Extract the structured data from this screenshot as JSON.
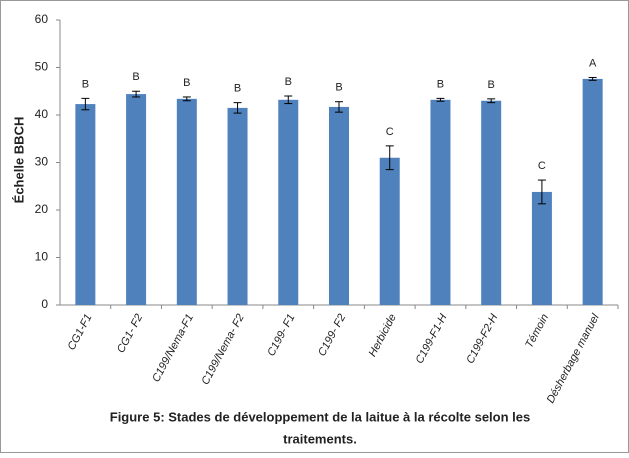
{
  "chart_data": {
    "type": "bar",
    "title": [
      "Figure 5: Stades de développement de la laitue à la récolte selon les",
      "traitements."
    ],
    "y_label": "Échelle BBCH",
    "categories": [
      "CG1-F1",
      "CG1- F2",
      "C199/Nema-F1",
      "C199/Nema- F2",
      "C199- F1",
      "C199- F2",
      "Herbicide",
      "C199-F1-H",
      "C199-F2-H",
      "Témoin",
      "Désherbage manuel"
    ],
    "values": [
      42.3,
      44.4,
      43.4,
      41.5,
      43.2,
      41.7,
      31,
      43.2,
      43,
      23.8,
      47.6
    ],
    "errors": [
      1.2,
      0.6,
      0.4,
      1.1,
      0.8,
      1.1,
      2.5,
      0.3,
      0.4,
      2.5,
      0.3
    ],
    "letters": [
      "B",
      "B",
      "B",
      "B",
      "B",
      "B",
      "C",
      "B",
      "B",
      "C",
      "A"
    ],
    "color": "#4f81bd",
    "ylim": [
      0,
      60
    ],
    "yticks": [
      0,
      10,
      20,
      30,
      40,
      50,
      60
    ],
    "grid": false
  }
}
